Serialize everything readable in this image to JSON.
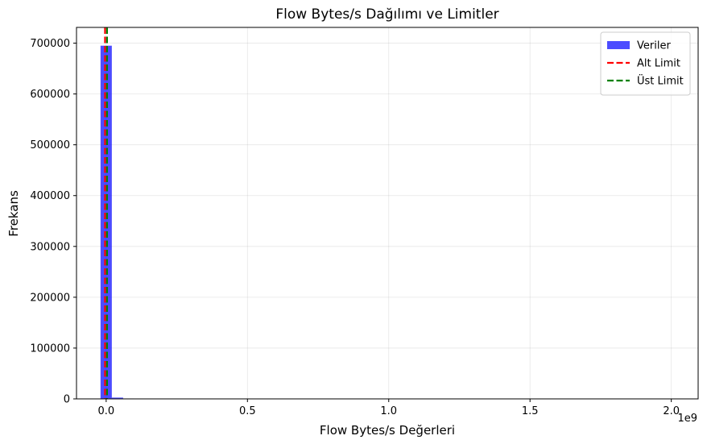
{
  "chart_data": {
    "type": "bar",
    "title": "Flow Bytes/s Dağılımı ve Limitler",
    "xlabel": "Flow Bytes/s Değerleri",
    "ylabel": "Frekans",
    "x_offset_label": "1e9",
    "x_scale": 1000000000,
    "xlim": [
      -0.105,
      2.095
    ],
    "ylim": [
      0,
      731000
    ],
    "x_ticks": [
      0,
      0.5,
      1.0,
      1.5,
      2.0
    ],
    "x_tick_labels": [
      "0.0",
      "0.5",
      "1.0",
      "1.5",
      "2.0"
    ],
    "y_ticks": [
      0,
      100000,
      200000,
      300000,
      400000,
      500000,
      600000,
      700000
    ],
    "y_tick_labels": [
      "0",
      "100000",
      "200000",
      "300000",
      "400000",
      "500000",
      "600000",
      "700000"
    ],
    "grid": true,
    "bin_width": 0.04,
    "bins": [
      {
        "start": -0.02,
        "count": 695000
      },
      {
        "start": 0.02,
        "count": 2500
      },
      {
        "start": 0.06,
        "count": 800
      },
      {
        "start": 0.1,
        "count": 200
      }
    ],
    "vlines": [
      {
        "name": "Alt Limit",
        "x": -0.004,
        "color": "#ff0000"
      },
      {
        "name": "Üst Limit",
        "x": 0.003,
        "color": "#008000"
      }
    ],
    "legend": {
      "placement": "top-right",
      "entries": [
        {
          "label": "Veriler",
          "kind": "patch",
          "color": "#0000ff"
        },
        {
          "label": "Alt Limit",
          "kind": "dashed-line",
          "color": "#ff0000"
        },
        {
          "label": "Üst Limit",
          "kind": "dashed-line",
          "color": "#008000"
        }
      ]
    },
    "bar_color": "#0000ff",
    "bar_alpha": 0.7
  }
}
